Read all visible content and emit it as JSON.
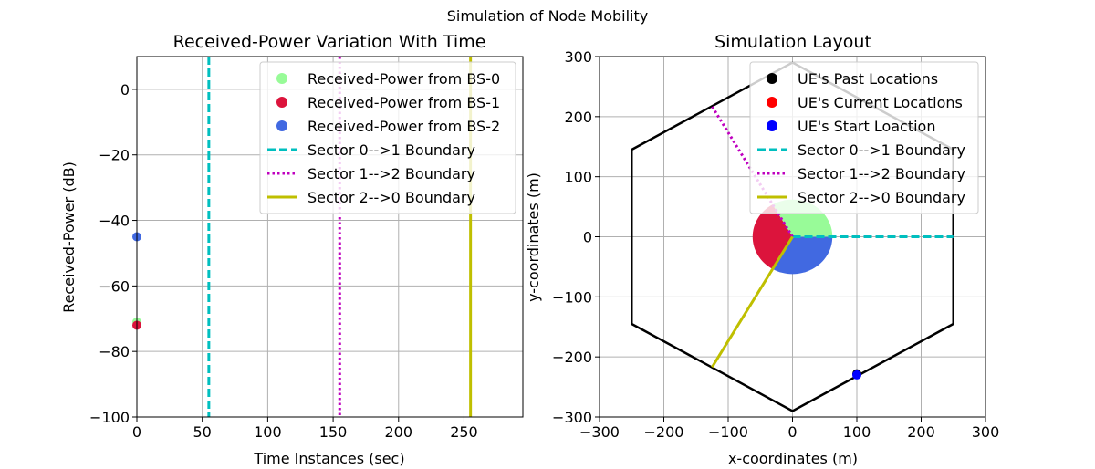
{
  "suptitle": "Simulation of Node Mobility",
  "chart_data": [
    {
      "type": "scatter",
      "title": "Received-Power Variation With Time",
      "xlabel": "Time Instances (sec)",
      "ylabel": "Received-Power (dB)",
      "xlim": [
        0,
        295
      ],
      "ylim": [
        -100,
        10
      ],
      "xticks": [
        0,
        50,
        100,
        150,
        200,
        250
      ],
      "yticks": [
        0,
        -20,
        -40,
        -60,
        -80,
        -100
      ],
      "grid": true,
      "legend_position": "top-right",
      "series": [
        {
          "name": "Received-Power from BS-0",
          "kind": "scatter",
          "color": "#98fb98",
          "points": [
            [
              0,
              -71
            ]
          ]
        },
        {
          "name": "Received-Power from BS-1",
          "kind": "scatter",
          "color": "#dc143c",
          "points": [
            [
              0,
              -72
            ]
          ]
        },
        {
          "name": "Received-Power from BS-2",
          "kind": "scatter",
          "color": "#4169e1",
          "points": [
            [
              0,
              -45
            ]
          ]
        }
      ],
      "vlines": [
        {
          "name": "Sector 0-->1 Boundary",
          "x": 55,
          "color": "#00bfbf",
          "style": "dashed"
        },
        {
          "name": "Sector 1-->2 Boundary",
          "x": 155,
          "color": "#bf00bf",
          "style": "dotted"
        },
        {
          "name": "Sector 2-->0 Boundary",
          "x": 255,
          "color": "#bfbf00",
          "style": "solid"
        }
      ]
    },
    {
      "type": "scatter",
      "title": "Simulation Layout",
      "xlabel": "x-coordinates (m)",
      "ylabel": "y-coordinates (m)",
      "xlim": [
        -300,
        300
      ],
      "ylim": [
        -300,
        300
      ],
      "xticks": [
        -300,
        -200,
        -100,
        0,
        100,
        200,
        300
      ],
      "yticks": [
        300,
        200,
        100,
        0,
        -100,
        -200,
        -300
      ],
      "grid": true,
      "legend_position": "top-right",
      "hexagon": [
        [
          0,
          290
        ],
        [
          250,
          145
        ],
        [
          250,
          -145
        ],
        [
          0,
          -290
        ],
        [
          -250,
          -145
        ],
        [
          -250,
          145
        ]
      ],
      "hexagon_color": "#000000",
      "wedges": [
        {
          "color": "#98fb98",
          "from_deg": 0,
          "to_deg": 120,
          "radius": 62
        },
        {
          "color": "#dc143c",
          "from_deg": 120,
          "to_deg": 240,
          "radius": 62
        },
        {
          "color": "#4169e1",
          "from_deg": 240,
          "to_deg": 360,
          "radius": 62
        }
      ],
      "boundaries": [
        {
          "name": "Sector 0-->1 Boundary",
          "color": "#00bfbf",
          "style": "dashed",
          "from": [
            0,
            0
          ],
          "to": [
            250,
            0
          ]
        },
        {
          "name": "Sector 1-->2 Boundary",
          "color": "#bf00bf",
          "style": "dotted",
          "from": [
            0,
            0
          ],
          "to": [
            -125,
            217
          ]
        },
        {
          "name": "Sector 2-->0 Boundary",
          "color": "#bfbf00",
          "style": "solid",
          "from": [
            0,
            0
          ],
          "to": [
            -125,
            -217
          ]
        }
      ],
      "markers": [
        {
          "name": "UE's Past Locations",
          "color": "#000000",
          "points": [
            [
              100,
              -228
            ]
          ]
        },
        {
          "name": "UE's Current Locations",
          "color": "#ff0000",
          "points": []
        },
        {
          "name": "UE's Start Loaction",
          "color": "#0000ff",
          "points": [
            [
              100,
              -230
            ]
          ]
        }
      ]
    }
  ]
}
